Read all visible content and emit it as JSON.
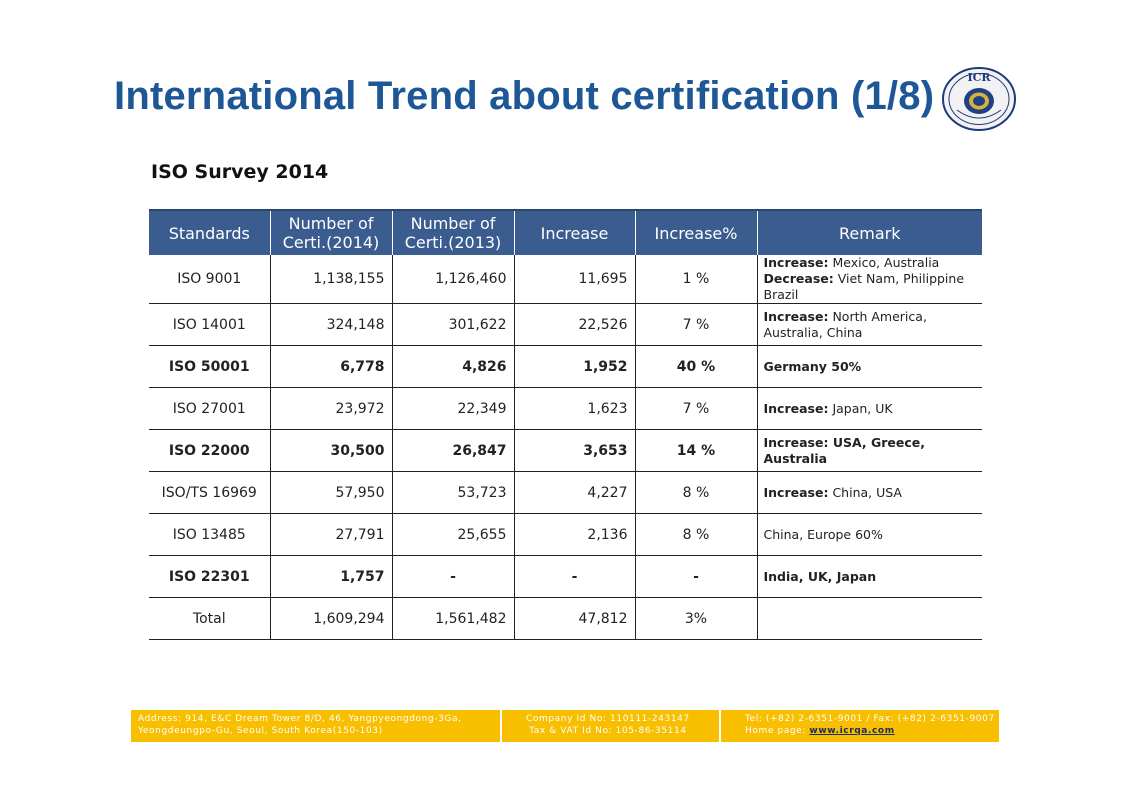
{
  "page": {
    "title": "International Trend about certification (1/8)",
    "subtitle": "ISO Survey 2014",
    "logo_text": "ICR"
  },
  "table": {
    "headers": [
      "Standards",
      "Number of Certi.(2014)",
      "Number of Certi.(2013)",
      "Increase",
      "Increase%",
      "Remark"
    ],
    "rows": [
      {
        "standard": "ISO 9001",
        "c2014": "1,138,155",
        "c2013": "1,126,460",
        "increase": "11,695",
        "pct": "1 %",
        "bold": false,
        "remark": [
          {
            "k": "Increase:",
            "v": " Mexico, Australia"
          },
          {
            "k": "Decrease:",
            "v": " Viet Nam, Philippine Brazil"
          }
        ]
      },
      {
        "standard": "ISO 14001",
        "c2014": "324,148",
        "c2013": "301,622",
        "increase": "22,526",
        "pct": "7 %",
        "bold": false,
        "remark": [
          {
            "k": "Increase:",
            "v": " North America, Australia, China"
          }
        ]
      },
      {
        "standard": "ISO 50001",
        "c2014": "6,778",
        "c2013": "4,826",
        "increase": "1,952",
        "pct": "40 %",
        "bold": true,
        "remark": [
          {
            "k": "",
            "v": "Germany 50%"
          }
        ]
      },
      {
        "standard": "ISO 27001",
        "c2014": "23,972",
        "c2013": "22,349",
        "increase": "1,623",
        "pct": "7 %",
        "bold": false,
        "remark": [
          {
            "k": "Increase:",
            "v": " Japan, UK"
          }
        ]
      },
      {
        "standard": "ISO 22000",
        "c2014": "30,500",
        "c2013": "26,847",
        "increase": "3,653",
        "pct": "14 %",
        "bold": true,
        "remark": [
          {
            "k": "Increase:",
            "v": " USA, Greece, Australia"
          }
        ]
      },
      {
        "standard": "ISO/TS 16969",
        "c2014": "57,950",
        "c2013": "53,723",
        "increase": "4,227",
        "pct": "8 %",
        "bold": false,
        "remark": [
          {
            "k": "Increase:",
            "v": " China, USA"
          }
        ]
      },
      {
        "standard": "ISO 13485",
        "c2014": "27,791",
        "c2013": "25,655",
        "increase": "2,136",
        "pct": "8 %",
        "bold": false,
        "remark": [
          {
            "k": "",
            "v": "China, Europe 60%"
          }
        ]
      },
      {
        "standard": "ISO 22301",
        "c2014": "1,757",
        "c2013": "-",
        "increase": "-",
        "pct": "-",
        "bold": true,
        "remark": [
          {
            "k": "",
            "v": "India, UK, Japan"
          }
        ]
      },
      {
        "standard": "Total",
        "c2014": "1,609,294",
        "c2013": "1,561,482",
        "increase": "47,812",
        "pct": "3%",
        "bold": false,
        "remark": []
      }
    ]
  },
  "footer": {
    "address_line1": "Address: 914, E&C Dream Tower 8/D, 46, Yangpyeongdong-3Ga,",
    "address_line2": "Yeongdeungpo-Gu, Seoul, South Korea(150-103)",
    "company_line1": "Company Id No: 110111-243147",
    "company_line2": "Tax & VAT Id No: 105-86-35114",
    "tel_line": "Tel: (+82) 2-6351-9001 / Fax: (+82) 2-6351-9007",
    "home_label": "Home page: ",
    "home_link": "www.icrqa.com"
  },
  "colors": {
    "title": "#1d5796",
    "header_bg": "#3b5c8f",
    "footer_bg": "#f8be00"
  }
}
